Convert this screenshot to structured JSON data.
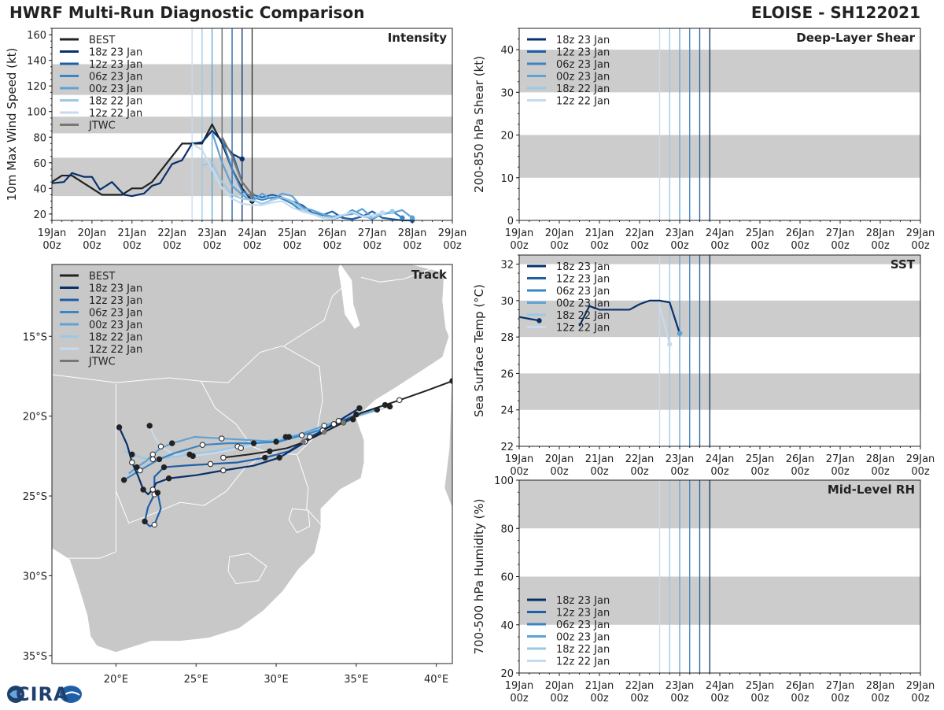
{
  "title_left": "HWRF Multi-Run Diagnostic Comparison",
  "title_right": "ELOISE - SH122021",
  "logo_text": "CIRA",
  "colors": {
    "best": "#222222",
    "jtwc": "#777777",
    "r18z23": "#08306b",
    "r12z23": "#1f5fa8",
    "r06z23": "#3a85c6",
    "r00z23": "#5fa2d4",
    "r18z22": "#9ac8e6",
    "r12z22": "#c6dbef",
    "band": "#cccccc",
    "land": "#c8c8c8"
  },
  "time_ticks": [
    "19Jan",
    "20Jan",
    "21Jan",
    "22Jan",
    "23Jan",
    "24Jan",
    "25Jan",
    "26Jan",
    "27Jan",
    "28Jan",
    "29Jan"
  ],
  "time_tick_hour": "00z",
  "init_lines": [
    {
      "name": "12z 22 Jan",
      "t": 3.5,
      "key": "r12z22"
    },
    {
      "name": "18z 22 Jan",
      "t": 3.75,
      "key": "r18z22"
    },
    {
      "name": "00z 23 Jan",
      "t": 4.0,
      "key": "r00z23"
    },
    {
      "name": "06z 23 Jan",
      "t": 4.25,
      "key": "r06z23"
    },
    {
      "name": "12z 23 Jan",
      "t": 4.5,
      "key": "r12z23"
    },
    {
      "name": "18z 23 Jan",
      "t": 4.75,
      "key": "r18z23"
    }
  ],
  "chart_data": [
    {
      "type": "line",
      "title": "Intensity",
      "ylabel": "10m Max Wind Speed (kt)",
      "xlabel": "",
      "ylim": [
        15,
        165
      ],
      "yticks": [
        20,
        40,
        60,
        80,
        100,
        120,
        140,
        160
      ],
      "bands": [
        [
          34,
          64
        ],
        [
          83,
          96
        ],
        [
          113,
          137
        ]
      ],
      "legend": [
        "BEST",
        "18z 23 Jan",
        "12z 23 Jan",
        "06z 23 Jan",
        "00z 23 Jan",
        "18z 22 Jan",
        "12z 22 Jan",
        "JTWC"
      ],
      "series": [
        {
          "name": "BEST",
          "key": "best",
          "x": [
            0,
            0.25,
            0.5,
            0.75,
            1,
            1.25,
            1.5,
            1.75,
            2,
            2.25,
            2.5,
            2.75,
            3,
            3.25,
            3.5,
            3.75,
            4,
            4.25,
            4.5,
            4.75,
            5
          ],
          "y": [
            45,
            50,
            50,
            45,
            40,
            35,
            35,
            35,
            40,
            40,
            45,
            55,
            65,
            75,
            75,
            75,
            90,
            75,
            55,
            40,
            30
          ]
        },
        {
          "name": "18z 23 Jan",
          "key": "r18z23",
          "x": [
            0,
            0.3,
            0.5,
            0.8,
            1.0,
            1.2,
            1.5,
            1.8,
            2.0,
            2.3,
            2.5,
            2.7,
            3.0,
            3.25,
            3.5,
            3.75,
            4.0,
            4.25,
            4.5,
            4.75
          ],
          "y": [
            44,
            45,
            52,
            49,
            49,
            39,
            45,
            35,
            34,
            36,
            42,
            44,
            59,
            62,
            75,
            76,
            85,
            77,
            67,
            63
          ]
        },
        {
          "name": "12z 23 Jan",
          "key": "r12z23",
          "x": [
            4.5,
            4.75,
            5.0,
            5.25,
            5.5,
            5.75,
            6.0,
            6.25,
            6.5,
            6.75,
            7.0,
            7.25,
            7.5,
            7.75,
            8.0,
            8.25,
            8.5,
            8.75,
            9.0
          ],
          "y": [
            68,
            45,
            35,
            33,
            35,
            33,
            30,
            27,
            21,
            19,
            22,
            17,
            16,
            18,
            22,
            17,
            16,
            15,
            15
          ]
        },
        {
          "name": "06z 23 Jan",
          "key": "r06z23",
          "x": [
            4.25,
            4.5,
            4.75,
            5.0,
            5.25,
            5.5,
            5.75,
            6.0,
            6.25,
            6.5,
            6.75,
            7.0,
            7.25,
            7.5,
            7.75,
            8.0,
            8.25,
            8.5,
            8.75
          ],
          "y": [
            78,
            55,
            38,
            33,
            31,
            33,
            32,
            28,
            22,
            20,
            20,
            16,
            18,
            23,
            19,
            16,
            20,
            22,
            17
          ]
        },
        {
          "name": "00z 23 Jan",
          "key": "r00z23",
          "x": [
            4.0,
            4.25,
            4.5,
            4.75,
            5.0,
            5.25,
            5.5,
            5.75,
            6.0,
            6.25,
            6.5,
            6.75,
            7.0,
            7.25,
            7.5,
            7.75,
            8.0,
            8.25,
            8.5,
            8.75,
            9.0
          ],
          "y": [
            84,
            60,
            42,
            35,
            30,
            36,
            31,
            36,
            34,
            25,
            23,
            20,
            18,
            19,
            20,
            24,
            17,
            20,
            21,
            23,
            17
          ]
        },
        {
          "name": "18z 22 Jan",
          "key": "r18z22",
          "x": [
            3.75,
            4.0,
            4.25,
            4.5,
            4.75,
            5.0,
            5.25,
            5.5,
            5.75,
            6.0,
            6.25,
            6.5,
            6.75,
            7.0,
            7.25,
            7.5,
            7.75,
            8.0,
            8.25,
            8.5
          ],
          "y": [
            58,
            60,
            45,
            35,
            32,
            31,
            28,
            31,
            33,
            30,
            24,
            20,
            18,
            17,
            19,
            21,
            18,
            17,
            20,
            22
          ]
        },
        {
          "name": "12z 22 Jan",
          "key": "r12z22",
          "x": [
            3.5,
            3.75,
            4.0,
            4.25,
            4.5,
            4.75,
            5.0,
            5.25,
            5.5,
            5.75,
            6.0,
            6.25,
            6.5,
            6.75,
            7.0,
            7.25,
            7.5,
            7.75,
            8.0,
            8.25
          ],
          "y": [
            75,
            70,
            55,
            40,
            32,
            28,
            27,
            27,
            29,
            30,
            25,
            22,
            20,
            17,
            16,
            19,
            22,
            18,
            19,
            21
          ]
        },
        {
          "name": "JTWC",
          "key": "jtwc",
          "x": [
            4.25,
            4.5,
            4.75,
            5.0
          ],
          "y": [
            80,
            65,
            45,
            35
          ]
        }
      ]
    },
    {
      "type": "line",
      "title": "Deep-Layer Shear",
      "ylabel": "200-850 hPa Shear (kt)",
      "xlabel": "",
      "ylim": [
        0,
        45
      ],
      "yticks": [
        0,
        10,
        20,
        30,
        40
      ],
      "bands": [
        [
          10,
          20
        ],
        [
          30,
          40
        ]
      ],
      "legend": [
        "18z 23 Jan",
        "12z 23 Jan",
        "06z 23 Jan",
        "00z 23 Jan",
        "18z 22 Jan",
        "12z 22 Jan"
      ],
      "series": []
    },
    {
      "type": "line",
      "title": "SST",
      "ylabel": "Sea Surface Temp (°C)",
      "xlabel": "",
      "ylim": [
        22,
        32.5
      ],
      "yticks": [
        22,
        24,
        26,
        28,
        30,
        32
      ],
      "bands": [
        [
          24,
          26
        ],
        [
          28,
          30
        ],
        [
          32,
          32.5
        ]
      ],
      "legend": [
        "18z 23 Jan",
        "12z 23 Jan",
        "06z 23 Jan",
        "00z 23 Jan",
        "18z 22 Jan",
        "12z 22 Jan"
      ],
      "series": [
        {
          "name": "18z 23 Jan",
          "key": "r18z23",
          "x": [
            0,
            0.25,
            0.5
          ],
          "y": [
            29.1,
            29.0,
            28.9
          ]
        },
        {
          "name": "18z 23 Jan",
          "key": "r18z23",
          "x": [
            1.5,
            1.75,
            2.0,
            2.25,
            2.5,
            2.75,
            3.0,
            3.25,
            3.5,
            3.75,
            4.0
          ],
          "y": [
            28.6,
            29.7,
            29.5,
            29.5,
            29.5,
            29.5,
            29.8,
            30.0,
            30.0,
            29.9,
            28.2
          ]
        },
        {
          "name": "12z 22 Jan",
          "key": "r12z22",
          "x": [
            3.5,
            3.75
          ],
          "y": [
            29.7,
            27.6
          ]
        },
        {
          "name": "00z 23 Jan",
          "key": "r00z23",
          "x": [
            4.0
          ],
          "y": [
            28.2
          ]
        }
      ]
    },
    {
      "type": "line",
      "title": "Mid-Level RH",
      "ylabel": "700-500 hPa Humidity (%)",
      "xlabel": "",
      "ylim": [
        20,
        100
      ],
      "yticks": [
        20,
        40,
        60,
        80,
        100
      ],
      "bands": [
        [
          40,
          60
        ],
        [
          80,
          100
        ]
      ],
      "legend": [
        "18z 23 Jan",
        "12z 23 Jan",
        "06z 23 Jan",
        "00z 23 Jan",
        "18z 22 Jan",
        "12z 22 Jan"
      ],
      "series": []
    },
    {
      "type": "scatter",
      "title": "Track",
      "xlabel": "",
      "ylabel": "",
      "lon_range": [
        16,
        41
      ],
      "lat_range": [
        -35.5,
        -10.5
      ],
      "xticks": [
        {
          "v": 20,
          "label": "20°E"
        },
        {
          "v": 25,
          "label": "25°E"
        },
        {
          "v": 30,
          "label": "30°E"
        },
        {
          "v": 35,
          "label": "35°E"
        },
        {
          "v": 40,
          "label": "40°E"
        }
      ],
      "yticks": [
        {
          "v": -15,
          "label": "15°S"
        },
        {
          "v": -20,
          "label": "20°S"
        },
        {
          "v": -25,
          "label": "25°S"
        },
        {
          "v": -30,
          "label": "30°S"
        },
        {
          "v": -35,
          "label": "35°S"
        }
      ],
      "legend": [
        "BEST",
        "18z 23 Jan",
        "12z 23 Jan",
        "06z 23 Jan",
        "00z 23 Jan",
        "18z 22 Jan",
        "12z 22 Jan",
        "JTWC"
      ],
      "tracks": [
        {
          "name": "BEST",
          "key": "best",
          "lon": [
            41.0,
            39.4,
            37.7,
            35.3,
            34.2,
            32.8,
            31.8,
            30.7,
            29.6,
            28.3,
            26.7
          ],
          "lat": [
            -17.8,
            -18.4,
            -19.0,
            -19.8,
            -20.4,
            -21.1,
            -21.6,
            -22.0,
            -22.2,
            -22.4,
            -22.6
          ]
        },
        {
          "name": "18z 23 Jan",
          "key": "r18z23",
          "lon": [
            35.2,
            33.9,
            32.9,
            31.7,
            30.2,
            28.6,
            26.7,
            25.0,
            23.3,
            22.5,
            22.3,
            22.0,
            21.7,
            21.4,
            21.0,
            20.7,
            20.2
          ],
          "lat": [
            -19.5,
            -20.3,
            -20.9,
            -21.7,
            -22.6,
            -23.1,
            -23.4,
            -23.7,
            -23.9,
            -24.2,
            -24.6,
            -24.9,
            -24.6,
            -23.8,
            -22.9,
            -21.8,
            -20.7
          ]
        },
        {
          "name": "12z 23 Jan",
          "key": "r12z23",
          "lon": [
            35.0,
            33.5,
            32.1,
            30.8,
            29.3,
            27.6,
            25.9,
            24.3,
            23.0,
            22.4,
            22.4,
            22.0,
            21.8,
            22.1,
            22.4,
            22.8,
            22.6
          ],
          "lat": [
            -19.9,
            -20.6,
            -21.3,
            -22.2,
            -22.6,
            -22.9,
            -23.0,
            -23.1,
            -23.2,
            -23.8,
            -24.9,
            -25.7,
            -26.6,
            -26.9,
            -26.8,
            -25.8,
            -24.8
          ]
        },
        {
          "name": "06z 23 Jan",
          "key": "r06z23",
          "lon": [
            34.8,
            33.0,
            31.6,
            30.2,
            28.6,
            27.0,
            25.4,
            23.7,
            22.7,
            22.0,
            21.5,
            21.0,
            20.5
          ],
          "lat": [
            -20.2,
            -20.8,
            -21.2,
            -21.6,
            -21.7,
            -21.7,
            -21.8,
            -22.3,
            -22.7,
            -23.1,
            -23.4,
            -23.7,
            -24.0
          ]
        },
        {
          "name": "00z 23 Jan",
          "key": "r00z23",
          "lon": [
            36.3,
            34.6,
            33.0,
            31.6,
            30.0,
            28.3,
            26.6,
            24.9,
            23.5,
            22.8,
            22.3,
            21.9,
            21.3,
            20.8
          ],
          "lat": [
            -19.6,
            -20.1,
            -20.6,
            -21.1,
            -21.6,
            -21.5,
            -21.4,
            -21.3,
            -21.7,
            -22.0,
            -22.4,
            -22.8,
            -23.2,
            -23.6
          ]
        },
        {
          "name": "18z 22 Jan",
          "key": "r18z22",
          "lon": [
            36.8,
            35.2,
            33.6,
            32.1,
            30.6,
            29.1,
            27.6,
            26.1,
            24.6,
            23.3,
            22.3,
            21.6,
            21.0,
            20.5
          ],
          "lat": [
            -19.3,
            -19.9,
            -20.5,
            -21.0,
            -21.3,
            -21.6,
            -21.9,
            -22.2,
            -22.4,
            -22.6,
            -22.7,
            -22.6,
            -22.4,
            -22.2
          ]
        },
        {
          "name": "12z 22 Jan",
          "key": "r12z22",
          "lon": [
            37.1,
            35.5,
            33.9,
            32.4,
            30.8,
            29.3,
            27.8,
            26.3,
            24.8,
            23.6,
            22.8,
            22.4,
            22.1
          ],
          "lat": [
            -19.4,
            -19.9,
            -20.3,
            -20.8,
            -21.3,
            -21.7,
            -22.0,
            -22.3,
            -22.5,
            -22.4,
            -21.9,
            -21.3,
            -20.6
          ]
        },
        {
          "name": "JTWC",
          "key": "jtwc",
          "lon": [
            34.2,
            33.0,
            31.7
          ],
          "lat": [
            -20.4,
            -21.0,
            -21.6
          ]
        }
      ]
    }
  ]
}
